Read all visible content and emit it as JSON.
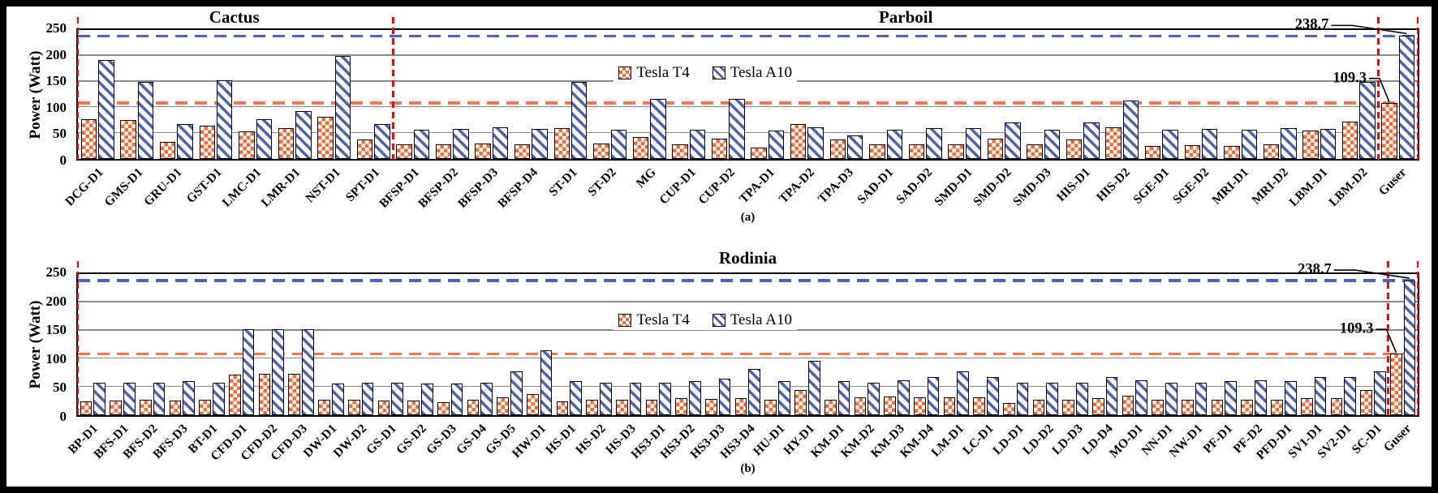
{
  "figure": {
    "background": "#000000",
    "panel_background": "#ffffff"
  },
  "colors": {
    "t4": "#EE7038",
    "a10": "#4F63B4",
    "t4_line": "#F3764D",
    "a10_line": "#4E60C4",
    "divider": "#FF0000",
    "grid": "#8a8a8a",
    "axis": "#000000"
  },
  "chart_data": [
    {
      "type": "bar",
      "sublabel": "(a)",
      "ylabel": "Power (Watt)",
      "ylim": [
        0,
        250
      ],
      "yticks": [
        0,
        50,
        100,
        150,
        200,
        250
      ],
      "grid": true,
      "legend_position": "inside-top-center",
      "section_titles": [
        {
          "label": "Cactus",
          "from": 0,
          "to": 7
        },
        {
          "label": "Parboil",
          "from": 8,
          "to": 33
        }
      ],
      "categories": [
        "DCG-D1",
        "GMS-D1",
        "GRU-D1",
        "GST-D1",
        "LMC-D1",
        "LMR-D1",
        "NST-D1",
        "SPT-D1",
        "BFSP-D1",
        "BFSP-D2",
        "BFSP-D3",
        "BFSP-D4",
        "ST-D1",
        "ST-D2",
        "MG",
        "CUP-D1",
        "CUP-D2",
        "TPA-D1",
        "TPA-D2",
        "TPA-D3",
        "SAD-D1",
        "SAD-D2",
        "SMD-D1",
        "SMD-D2",
        "SMD-D3",
        "HIS-D1",
        "HIS-D2",
        "SGE-D1",
        "SGE-D2",
        "MRI-D1",
        "MRI-D2",
        "LBM-D1",
        "LBM-D2",
        "Guser"
      ],
      "series": [
        {
          "name": "Tesla T4",
          "pattern": "checker",
          "values": [
            77,
            75,
            33,
            64,
            53,
            60,
            82,
            37,
            28,
            28,
            30,
            28,
            60,
            30,
            42,
            28,
            40,
            22,
            68,
            37,
            28,
            28,
            28,
            40,
            29,
            37,
            62,
            25,
            27,
            25,
            28,
            55,
            73,
            109.3
          ]
        },
        {
          "name": "Tesla A10",
          "pattern": "diagonal-stripe",
          "values": [
            192,
            150,
            67,
            152,
            77,
            93,
            199,
            67,
            57,
            58,
            61,
            58,
            150,
            57,
            117,
            57,
            116,
            55,
            62,
            45,
            57,
            60,
            60,
            70,
            57,
            70,
            113,
            57,
            58,
            57,
            60,
            58,
            150,
            238.7
          ]
        }
      ],
      "hlines": [
        {
          "value": 238.7,
          "style": "a10line"
        },
        {
          "value": 109.3,
          "style": "t4line"
        }
      ],
      "annotations": [
        {
          "text": "238.7",
          "category": "Guser",
          "series_index": 1
        },
        {
          "text": "109.3",
          "category": "Guser",
          "series_index": 0
        }
      ],
      "dividers_at": [
        0,
        8,
        33,
        34
      ]
    },
    {
      "type": "bar",
      "sublabel": "(b)",
      "ylabel": "Power (Watt)",
      "ylim": [
        0,
        250
      ],
      "yticks": [
        0,
        50,
        100,
        150,
        200,
        250
      ],
      "grid": true,
      "legend_position": "inside-top-center",
      "section_titles": [
        {
          "label": "Rodinia",
          "from": 0,
          "to": 44
        }
      ],
      "categories": [
        "BP-D1",
        "BFS-D1",
        "BFS-D2",
        "BFS-D3",
        "BT-D1",
        "CFD-D1",
        "CFD-D2",
        "CFD-D3",
        "DW-D1",
        "DW-D2",
        "GS-D1",
        "GS-D2",
        "GS-D3",
        "GS-D4",
        "GS-D5",
        "HW-D1",
        "HS-D1",
        "HS-D2",
        "HS-D3",
        "HS3-D1",
        "HS3-D2",
        "HS3-D3",
        "HS3-D4",
        "HU-D1",
        "HY-D1",
        "KM-D1",
        "KM-D2",
        "KM-D3",
        "KM-D4",
        "LM-D1",
        "LC-D1",
        "LD-D1",
        "LD-D2",
        "LD-D3",
        "LD-D4",
        "MO-D1",
        "NN-D1",
        "NW-D1",
        "PF-D1",
        "PF-D2",
        "PFD-D1",
        "SV1-D1",
        "SV2-D1",
        "SC-D1",
        "Guser"
      ],
      "series": [
        {
          "name": "Tesla T4",
          "pattern": "checker",
          "values": [
            25,
            26,
            27,
            26,
            27,
            72,
            73,
            74,
            27,
            27,
            26,
            26,
            23,
            27,
            31,
            38,
            24,
            28,
            27,
            28,
            30,
            29,
            30,
            28,
            45,
            27,
            31,
            33,
            32,
            31,
            31,
            22,
            27,
            27,
            30,
            34,
            27,
            27,
            27,
            27,
            28,
            30,
            30,
            45,
            109.3
          ]
        },
        {
          "name": "Tesla A10",
          "pattern": "diagonal-stripe",
          "values": [
            57,
            58,
            58,
            60,
            58,
            152,
            153,
            152,
            56,
            58,
            58,
            56,
            56,
            58,
            77,
            115,
            60,
            58,
            58,
            58,
            60,
            65,
            82,
            60,
            97,
            60,
            57,
            62,
            68,
            78,
            67,
            57,
            57,
            57,
            67,
            62,
            57,
            57,
            60,
            62,
            60,
            67,
            68,
            77,
            238.7
          ]
        }
      ],
      "hlines": [
        {
          "value": 238.7,
          "style": "a10line"
        },
        {
          "value": 109.3,
          "style": "t4line"
        }
      ],
      "annotations": [
        {
          "text": "238.7",
          "category": "Guser",
          "series_index": 1
        },
        {
          "text": "109.3",
          "category": "Guser",
          "series_index": 0
        }
      ],
      "dividers_at": [
        0,
        44,
        45
      ]
    }
  ]
}
